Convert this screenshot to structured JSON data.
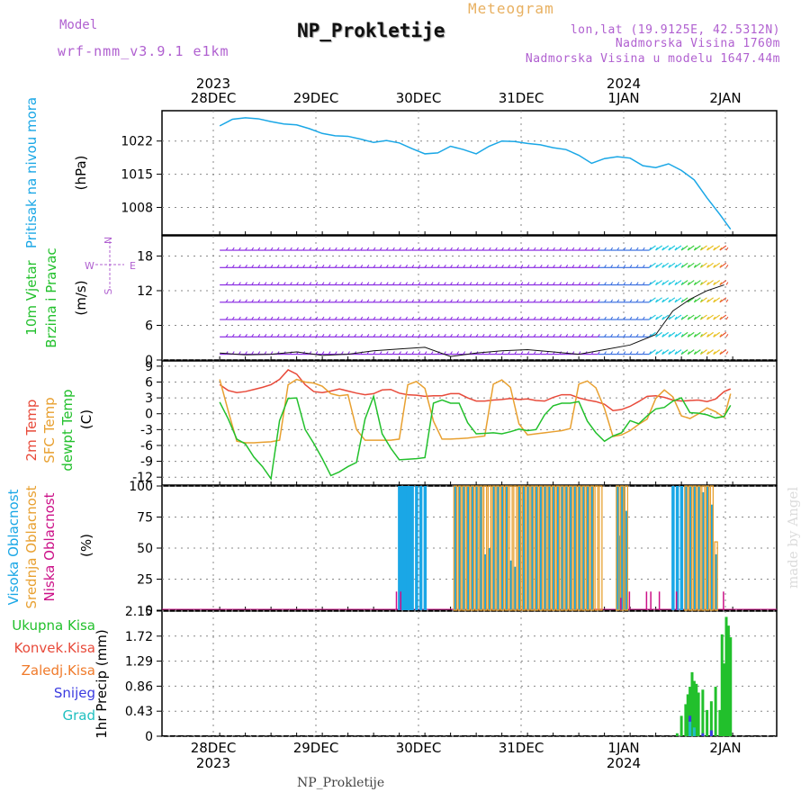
{
  "header": {
    "model_label": "Model",
    "model_name": "wrf-nmm_v3.9.1 e1km",
    "subtitle": "Meteogram",
    "title": "NP_Prokletije",
    "location_line": "lon,lat (19.9125E, 42.5312N)",
    "altitude_line": "Nadmorska Visina 1760m",
    "model_altitude_line": "Nadmorska Visina u modelu 1647.44m",
    "footer": "NP_Prokletije",
    "watermark": "made by Angel"
  },
  "colors": {
    "pressure": "#1aa7e6",
    "wind_label": "#22c02c",
    "temp": "#e84a3a",
    "sfc_temp": "#e8a030",
    "dewpt": "#22c02c",
    "high_cloud": "#1aa7e6",
    "mid_cloud": "#e8a030",
    "low_cloud": "#cc1188",
    "precip_total": "#22c02c",
    "precip_conv": "#e84a3a",
    "precip_frozen": "#f07a2a",
    "snow": "#3a3ae0",
    "graupel": "#20c0c0",
    "compass": "#b060d0",
    "title_sub": "#e8b060",
    "header_purple": "#b060d0"
  },
  "time_axis": {
    "top_years": [
      "2023",
      "2024"
    ],
    "bottom_years": [
      "2023",
      "2024"
    ],
    "days": [
      "28DEC",
      "29DEC",
      "30DEC",
      "31DEC",
      "1JAN",
      "2JAN"
    ]
  },
  "chart_data": [
    {
      "type": "line",
      "panel": "pressure",
      "ylabel_lines": [
        "Pritisak na nivou mora"
      ],
      "unit": "(hPa)",
      "yticks": [
        "1008",
        "1015",
        "1022"
      ],
      "ylim": [
        1002.2,
        1028.4
      ],
      "x_hours": [
        0,
        3,
        6,
        9,
        12,
        15,
        18,
        21,
        24,
        27,
        30,
        33,
        36,
        39,
        42,
        45,
        48,
        51,
        54,
        57,
        60,
        63,
        66,
        69,
        72,
        75,
        78,
        81,
        84,
        87,
        90,
        93,
        96,
        99,
        102,
        105,
        108,
        111,
        114,
        117,
        119.5
      ],
      "series": [
        {
          "values": [
            1025.2,
            1026.6,
            1026.9,
            1026.7,
            1026.1,
            1025.6,
            1025.4,
            1024.6,
            1023.6,
            1023.1,
            1023.0,
            1022.4,
            1021.7,
            1022.1,
            1021.6,
            1020.4,
            1019.3,
            1019.5,
            1020.9,
            1020.2,
            1019.3,
            1020.9,
            1022.0,
            1021.9,
            1021.5,
            1021.2,
            1020.6,
            1020.2,
            1019.0,
            1017.3,
            1018.3,
            1018.7,
            1018.4,
            1016.8,
            1016.4,
            1017.2,
            1015.8,
            1013.8,
            1010.0,
            1006.5,
            1003.4
          ]
        }
      ]
    },
    {
      "type": "barbs",
      "panel": "wind",
      "ylabel_lines": [
        "10m Vjetar",
        "Brzina i Pravac"
      ],
      "unit": "(m/s)",
      "yticks": [
        "0",
        "6",
        "12",
        "18"
      ],
      "ylim": [
        0,
        21.5
      ],
      "compass": {
        "n": "N",
        "s": "S",
        "e": "E",
        "w": "W"
      },
      "x_hours": [
        0,
        6,
        12,
        18,
        24,
        30,
        36,
        42,
        48,
        54,
        60,
        66,
        72,
        78,
        84,
        90,
        96,
        102,
        106,
        110,
        114,
        118
      ],
      "speed": [
        1.2,
        0.9,
        1.0,
        1.4,
        0.8,
        1.0,
        1.6,
        1.9,
        2.2,
        0.6,
        1.2,
        1.6,
        1.8,
        1.4,
        1.0,
        1.8,
        2.6,
        4.4,
        8.5,
        10.5,
        12.0,
        13.0
      ]
    },
    {
      "type": "line",
      "panel": "temperature",
      "ylabel_lines": [
        "2m Temp",
        "SFC Temp",
        "dewpt Temp"
      ],
      "unit": "(C)",
      "yticks": [
        "-12",
        "-9",
        "-6",
        "-3",
        "0",
        "3",
        "6",
        "9"
      ],
      "ylim": [
        -13.5,
        10
      ],
      "x_hours": [
        0,
        2,
        4,
        6,
        8,
        10,
        12,
        14,
        16,
        18,
        20,
        22,
        24,
        26,
        28,
        30,
        32,
        34,
        36,
        38,
        40,
        42,
        44,
        46,
        48,
        50,
        52,
        54,
        56,
        58,
        60,
        62,
        64,
        66,
        68,
        70,
        72,
        74,
        76,
        78,
        80,
        82,
        84,
        86,
        88,
        90,
        92,
        94,
        96,
        98,
        100,
        102,
        104,
        106,
        108,
        110,
        112,
        114,
        116,
        118,
        119.5
      ],
      "series": [
        {
          "name": "2m Temp",
          "values": [
            5.5,
            4.4,
            4.0,
            4.2,
            4.6,
            5.0,
            5.5,
            6.5,
            8.3,
            7.5,
            5.5,
            4.2,
            4.0,
            4.3,
            4.7,
            4.3,
            3.9,
            3.6,
            3.8,
            4.5,
            4.6,
            3.9,
            3.6,
            3.5,
            3.3,
            3.4,
            3.4,
            3.8,
            3.8,
            3.0,
            2.4,
            2.4,
            2.6,
            2.7,
            2.9,
            2.7,
            2.8,
            2.5,
            2.4,
            3.1,
            3.6,
            3.6,
            3.0,
            2.6,
            2.3,
            1.8,
            0.6,
            0.8,
            1.4,
            2.3,
            3.3,
            3.4,
            3.1,
            2.6,
            2.4,
            2.5,
            2.6,
            2.3,
            2.8,
            4.2,
            4.7
          ]
        },
        {
          "name": "SFC Temp",
          "values": [
            6.5,
            0.5,
            -5.2,
            -5.5,
            -5.5,
            -5.4,
            -5.3,
            -5.0,
            5.5,
            6.5,
            6.0,
            5.8,
            5.2,
            3.8,
            3.4,
            3.6,
            -3.0,
            -5.0,
            -5.0,
            -5.0,
            -5.0,
            -4.8,
            5.5,
            6.1,
            4.8,
            -1.4,
            -4.8,
            -4.8,
            -4.7,
            -4.6,
            -4.4,
            -4.2,
            5.6,
            6.4,
            5.0,
            -1.9,
            -4.0,
            -3.8,
            -3.6,
            -3.4,
            -3.2,
            -2.8,
            5.6,
            6.2,
            4.9,
            1.0,
            -4.3,
            -4.0,
            -3.2,
            -2.0,
            -1.0,
            2.9,
            4.5,
            3.2,
            -0.4,
            -0.9,
            0.0,
            1.1,
            0.4,
            -0.7,
            3.8
          ]
        },
        {
          "name": "dewpt Temp",
          "values": [
            2.2,
            -1.0,
            -4.8,
            -5.7,
            -8.2,
            -10.0,
            -12.3,
            -1.3,
            2.9,
            3.0,
            -3.0,
            -5.6,
            -8.5,
            -11.7,
            -11.0,
            -10.0,
            -9.2,
            -1.0,
            3.3,
            -3.8,
            -6.5,
            -8.7,
            -8.6,
            -8.5,
            -8.3,
            2.0,
            2.6,
            2.0,
            2.0,
            -1.7,
            -3.8,
            -3.7,
            -3.6,
            -3.8,
            -3.4,
            -2.9,
            -3.2,
            -3.0,
            -0.2,
            1.5,
            2.0,
            2.0,
            2.3,
            -1.4,
            -3.6,
            -5.2,
            -4.2,
            -3.6,
            -1.3,
            -1.9,
            -0.4,
            0.9,
            1.2,
            2.4,
            3.0,
            0.2,
            0.1,
            -0.2,
            -0.8,
            -0.5,
            1.6
          ]
        }
      ]
    },
    {
      "type": "bar",
      "panel": "clouds",
      "ylabel_lines": [
        "Visoka Oblacnost",
        "Srednja Oblacnost",
        "Niska Oblacnost"
      ],
      "unit": "(%)",
      "yticks": [
        "0",
        "25",
        "50",
        "75",
        "100"
      ],
      "ylim": [
        0,
        100
      ],
      "series": [
        {
          "name": "Visoka Oblacnost",
          "points": [
            [
              42,
              100
            ],
            [
              42.5,
              100
            ],
            [
              43,
              100
            ],
            [
              43.5,
              100
            ],
            [
              44,
              100
            ],
            [
              44.5,
              100
            ],
            [
              45,
              100
            ],
            [
              46,
              100
            ],
            [
              47,
              100
            ],
            [
              48,
              100
            ],
            [
              55,
              100
            ],
            [
              56,
              100
            ],
            [
              57,
              100
            ],
            [
              58,
              100
            ],
            [
              59,
              100
            ],
            [
              60,
              100
            ],
            [
              61,
              100
            ],
            [
              62,
              45
            ],
            [
              63,
              50
            ],
            [
              64,
              100
            ],
            [
              65,
              100
            ],
            [
              66,
              100
            ],
            [
              67,
              100
            ],
            [
              68,
              40
            ],
            [
              69,
              35
            ],
            [
              70,
              100
            ],
            [
              71,
              100
            ],
            [
              72,
              100
            ],
            [
              73,
              100
            ],
            [
              74,
              100
            ],
            [
              75,
              100
            ],
            [
              76,
              100
            ],
            [
              77,
              100
            ],
            [
              78,
              100
            ],
            [
              79,
              100
            ],
            [
              80,
              100
            ],
            [
              81,
              100
            ],
            [
              82,
              100
            ],
            [
              83,
              100
            ],
            [
              84,
              100
            ],
            [
              85,
              100
            ],
            [
              86,
              100
            ],
            [
              87,
              100
            ],
            [
              93,
              100
            ],
            [
              93.5,
              60
            ],
            [
              94,
              100
            ],
            [
              94.5,
              100
            ],
            [
              95,
              80
            ],
            [
              106,
              100
            ],
            [
              107,
              100
            ],
            [
              108,
              100
            ],
            [
              109,
              100
            ],
            [
              110,
              100
            ],
            [
              111,
              100
            ],
            [
              112,
              100
            ],
            [
              113,
              95
            ],
            [
              114,
              100
            ],
            [
              115,
              85
            ],
            [
              116,
              45
            ]
          ]
        },
        {
          "name": "Srednja Oblacnost",
          "points": [
            [
              55,
              100
            ],
            [
              56,
              100
            ],
            [
              57,
              100
            ],
            [
              58,
              100
            ],
            [
              59,
              100
            ],
            [
              60,
              100
            ],
            [
              61,
              100
            ],
            [
              62,
              100
            ],
            [
              63,
              100
            ],
            [
              64,
              100
            ],
            [
              65,
              100
            ],
            [
              66,
              100
            ],
            [
              67,
              100
            ],
            [
              68,
              100
            ],
            [
              69,
              100
            ],
            [
              70,
              100
            ],
            [
              71,
              100
            ],
            [
              72,
              100
            ],
            [
              73,
              100
            ],
            [
              74,
              100
            ],
            [
              75,
              100
            ],
            [
              76,
              100
            ],
            [
              77,
              100
            ],
            [
              78,
              100
            ],
            [
              79,
              100
            ],
            [
              80,
              100
            ],
            [
              81,
              100
            ],
            [
              82,
              100
            ],
            [
              83,
              100
            ],
            [
              84,
              100
            ],
            [
              85,
              100
            ],
            [
              86,
              100
            ],
            [
              87,
              100
            ],
            [
              88,
              100
            ],
            [
              89,
              100
            ],
            [
              93,
              100
            ],
            [
              94,
              100
            ],
            [
              95,
              100
            ],
            [
              109,
              100
            ],
            [
              110,
              100
            ],
            [
              111,
              100
            ],
            [
              112,
              100
            ],
            [
              113,
              100
            ],
            [
              114,
              100
            ],
            [
              115,
              100
            ],
            [
              116,
              55
            ]
          ]
        },
        {
          "name": "Niska Oblacnost",
          "points": [
            [
              41.5,
              15
            ],
            [
              42.5,
              15
            ],
            [
              94,
              10
            ],
            [
              96,
              15
            ],
            [
              100,
              15
            ],
            [
              101,
              15
            ],
            [
              103,
              15
            ],
            [
              107,
              15
            ],
            [
              118,
              15
            ]
          ]
        }
      ]
    },
    {
      "type": "bar",
      "panel": "precipitation",
      "ylabel_lines": [
        "Ukupna Kisa",
        "Konvek.Kisa",
        "Zaledj.Kisa",
        "Snijeg",
        "Grad"
      ],
      "unit": "1hr Precip (mm)",
      "yticks": [
        "0",
        "0.43",
        "0.86",
        "1.29",
        "1.72",
        "2.15"
      ],
      "ylim": [
        0,
        2.15
      ],
      "series": [
        {
          "name": "Ukupna Kisa",
          "points": [
            [
              107,
              0.05
            ],
            [
              108,
              0.35
            ],
            [
              109,
              0.55
            ],
            [
              109.5,
              0.72
            ],
            [
              110,
              0.85
            ],
            [
              110.5,
              1.1
            ],
            [
              111,
              0.95
            ],
            [
              111.5,
              0.9
            ],
            [
              112,
              0.75
            ],
            [
              113,
              0.8
            ],
            [
              114,
              0.45
            ],
            [
              115,
              0.6
            ],
            [
              116,
              0.85
            ],
            [
              117,
              0.45
            ],
            [
              117.5,
              1.75
            ],
            [
              118,
              1.25
            ],
            [
              118.5,
              2.05
            ],
            [
              119,
              1.9
            ],
            [
              119.5,
              1.7
            ]
          ]
        },
        {
          "name": "Snijeg",
          "points": [
            [
              110,
              0.35
            ],
            [
              111,
              0.1
            ],
            [
              113,
              0.05
            ],
            [
              115,
              0.1
            ]
          ]
        },
        {
          "name": "Grad",
          "points": [
            [
              110,
              0.25
            ],
            [
              111,
              0.15
            ]
          ]
        }
      ]
    }
  ]
}
